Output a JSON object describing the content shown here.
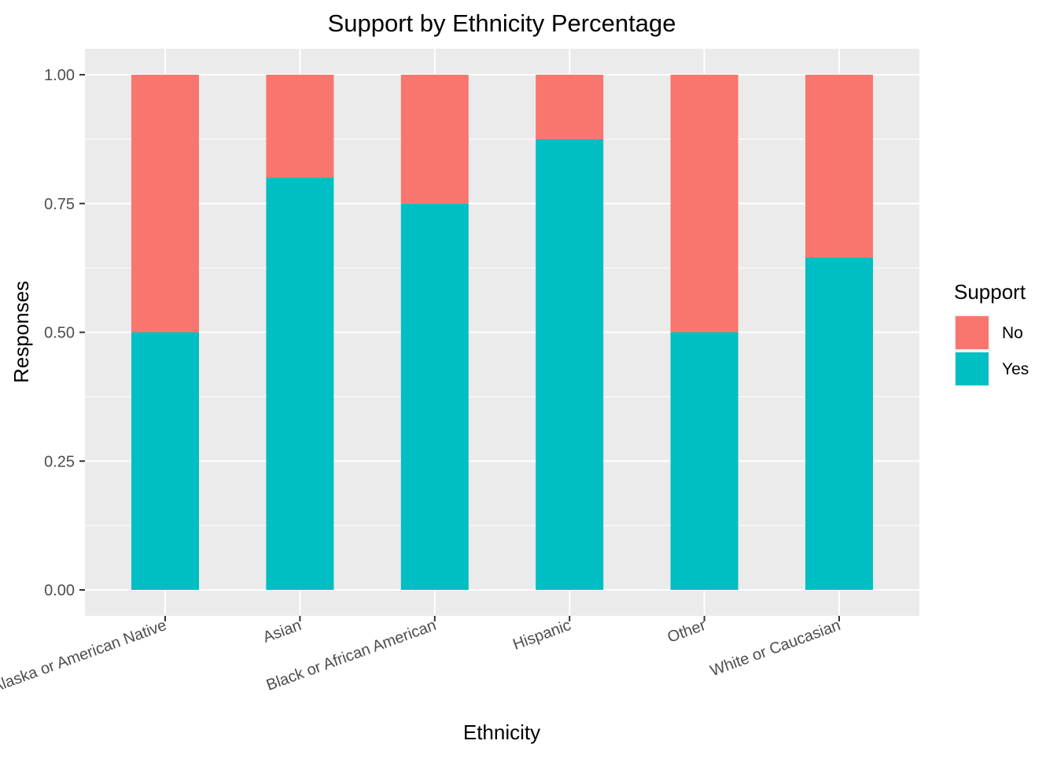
{
  "chart_data": {
    "type": "bar",
    "stacked": true,
    "title": "Support by Ethnicity Percentage",
    "xlabel": "Ethnicity",
    "ylabel": "Responses",
    "categories": [
      "Alaska or American Native",
      "Asian",
      "Black or African American",
      "Hispanic",
      "Other",
      "White or Caucasian"
    ],
    "series": [
      {
        "name": "Yes",
        "color": "#00BFC4",
        "values": [
          0.5,
          0.8,
          0.75,
          0.875,
          0.5,
          0.645
        ]
      },
      {
        "name": "No",
        "color": "#F8766D",
        "values": [
          0.5,
          0.2,
          0.25,
          0.125,
          0.5,
          0.355
        ]
      }
    ],
    "ylim": [
      0,
      1
    ],
    "yticks": [
      "0.00",
      "0.25",
      "0.50",
      "0.75",
      "1.00"
    ],
    "grid": true,
    "legend": {
      "title": "Support",
      "placement": "right",
      "entries": [
        {
          "label": "No",
          "color": "#F8766D"
        },
        {
          "label": "Yes",
          "color": "#00BFC4"
        }
      ]
    }
  }
}
